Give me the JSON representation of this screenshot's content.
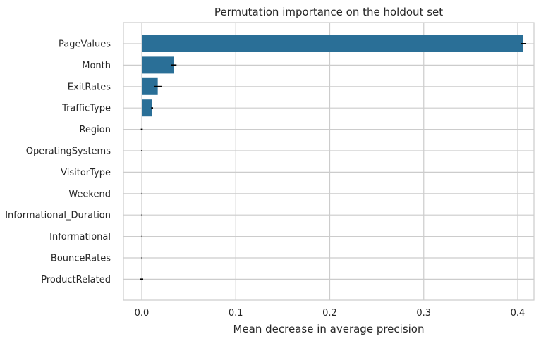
{
  "chart_data": {
    "type": "bar",
    "orientation": "horizontal",
    "title": "Permutation importance on the holdout set",
    "xlabel": "Mean decrease in average precision",
    "ylabel": "",
    "xlim": [
      -0.03,
      0.43
    ],
    "xticks": [
      0.0,
      0.1,
      0.2,
      0.3,
      0.4
    ],
    "xtick_labels": [
      "0.0",
      "0.1",
      "0.2",
      "0.3",
      "0.4"
    ],
    "grid": true,
    "bar_color": "#2a6f97",
    "error_color": "#000000",
    "grid_color": "#cccccc",
    "categories": [
      "PageValues",
      "Month",
      "ExitRates",
      "TrafficType",
      "Region",
      "OperatingSystems",
      "VisitorType",
      "Weekend",
      "Informational_Duration",
      "Informational",
      "BounceRates",
      "ProductRelated"
    ],
    "values": [
      0.406,
      0.034,
      0.017,
      0.011,
      0.0,
      0.0,
      0.0,
      0.0,
      0.0,
      0.0,
      0.0,
      0.0
    ],
    "errors": [
      0.003,
      0.003,
      0.004,
      0.001,
      0.001,
      0.0005,
      0.0,
      0.0003,
      0.0003,
      0.0003,
      0.0003,
      0.0015
    ]
  }
}
